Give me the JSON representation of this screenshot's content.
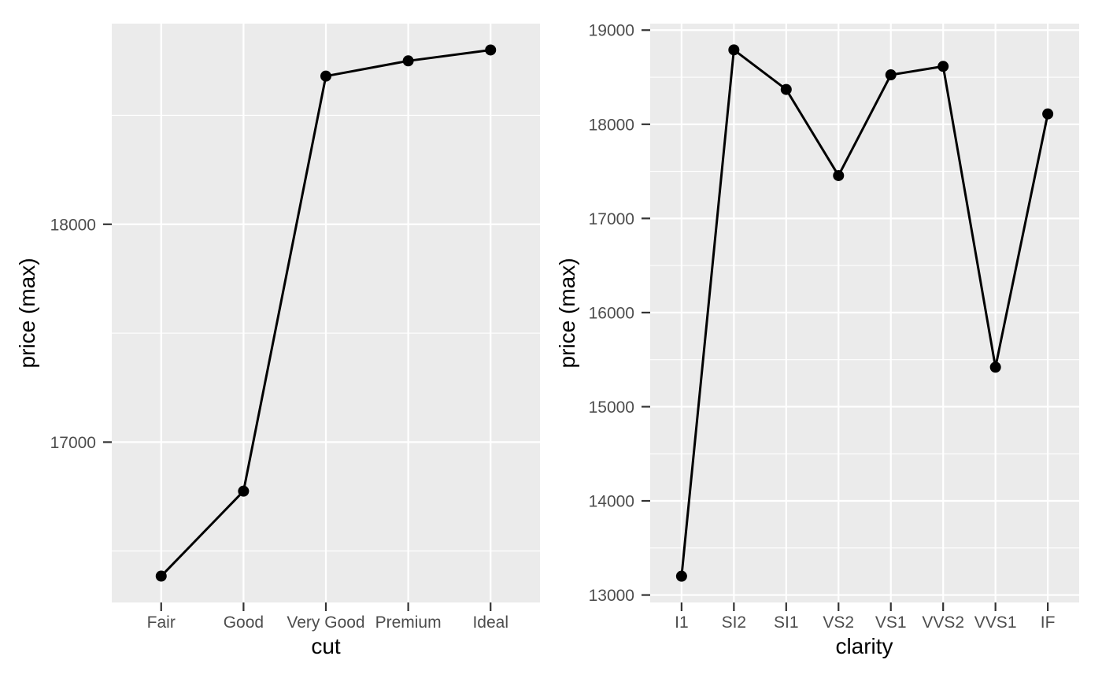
{
  "figure": {
    "background": "#FFFFFF",
    "title": ""
  },
  "style": {
    "panel_background": "#EBEBEB",
    "grid_color": "#FFFFFF",
    "line_color": "#000000",
    "point_color": "#000000",
    "tick_label_color": "#4D4D4D",
    "axis_title_color": "#000000",
    "tick_mark_color": "#333333"
  },
  "chart_data": [
    {
      "type": "line",
      "title": "",
      "xlabel": "cut",
      "ylabel": "price (max)",
      "categories": [
        "Fair",
        "Good",
        "Very Good",
        "Premium",
        "Ideal"
      ],
      "values": [
        16385,
        16775,
        18680,
        18750,
        18800
      ],
      "y_breaks": [
        17000,
        18000
      ],
      "y_break_labels": [
        "17000",
        "18000"
      ],
      "y_minor_breaks": [
        16500,
        17500,
        18500
      ],
      "ylim": [
        16264,
        18921
      ],
      "grid": "major+minor",
      "legend": "none",
      "marker": "point"
    },
    {
      "type": "line",
      "title": "",
      "xlabel": "clarity",
      "ylabel": "price (max)",
      "categories": [
        "I1",
        "SI2",
        "SI1",
        "VS2",
        "VS1",
        "VVS2",
        "VVS1",
        "IF"
      ],
      "values": [
        13200,
        18790,
        18370,
        17455,
        18525,
        18615,
        15420,
        18110
      ],
      "y_breaks": [
        13000,
        14000,
        15000,
        16000,
        17000,
        18000,
        19000
      ],
      "y_break_labels": [
        "13000",
        "14000",
        "15000",
        "16000",
        "17000",
        "18000",
        "19000"
      ],
      "y_minor_breaks": [
        13500,
        14500,
        15500,
        16500,
        17500,
        18500
      ],
      "ylim": [
        12921,
        19069
      ],
      "grid": "major+minor",
      "legend": "none",
      "marker": "point"
    }
  ]
}
